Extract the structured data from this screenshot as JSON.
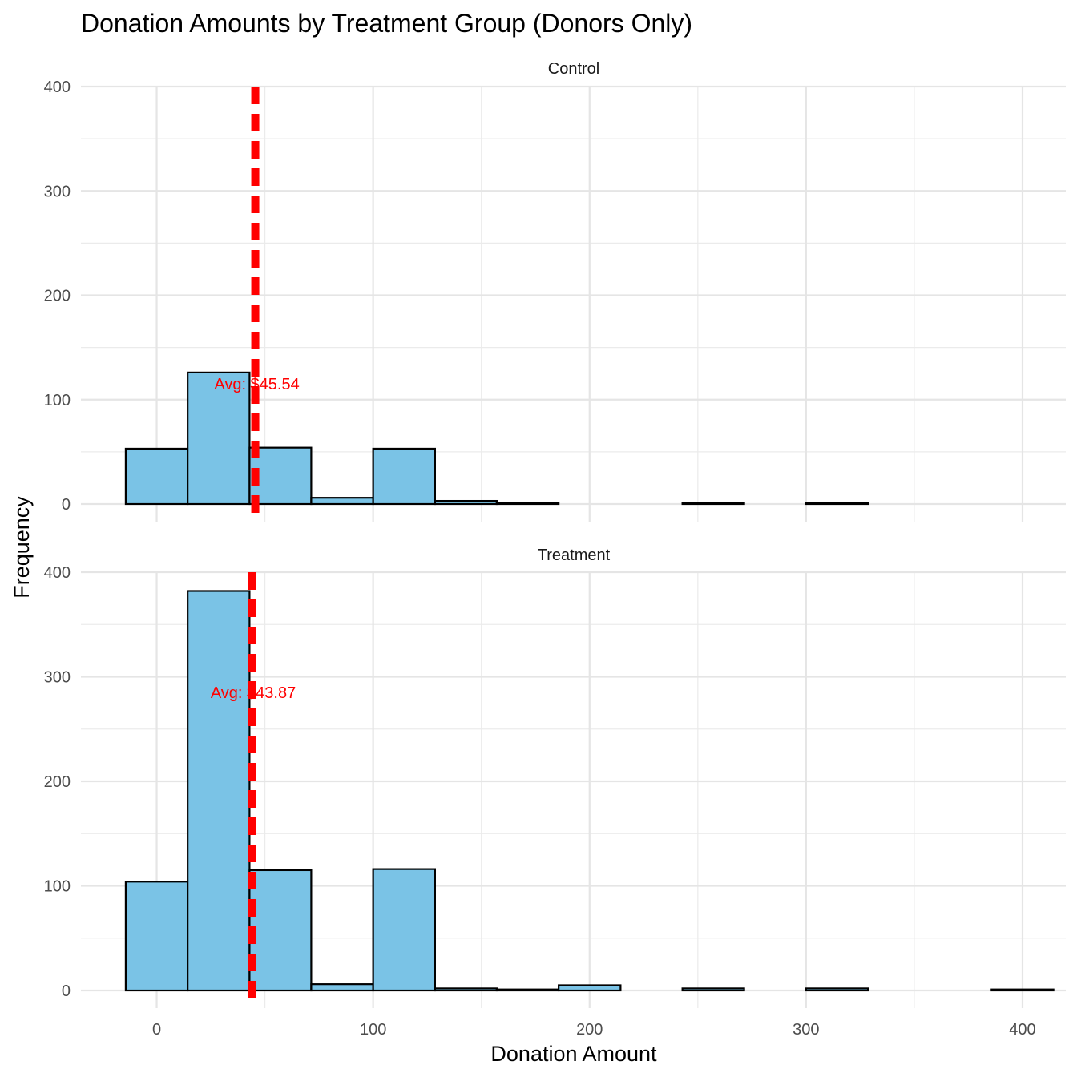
{
  "chart_data": {
    "type": "bar",
    "title": "Donation Amounts by Treatment Group (Donors Only)",
    "xlabel": "Donation Amount",
    "ylabel": "Frequency",
    "xlim": [
      -35,
      420
    ],
    "ylim": [
      0,
      400
    ],
    "x_ticks": [
      0,
      100,
      200,
      300,
      400
    ],
    "y_ticks": [
      0,
      100,
      200,
      300,
      400
    ],
    "bin_edges": [
      -14.3,
      14.3,
      42.9,
      71.4,
      100.0,
      128.6,
      157.1,
      185.7,
      214.3,
      242.9,
      271.4,
      300.0,
      328.6,
      357.1,
      385.7,
      414.3
    ],
    "grid": true,
    "bar_color": "#7ac3e6",
    "bar_outline": "#000000",
    "mean_line_color": "#ff0000",
    "panels": [
      {
        "name": "Control",
        "counts": [
          53,
          126,
          54,
          6,
          53,
          3,
          1,
          0,
          0,
          1,
          0,
          1,
          0,
          0,
          0
        ],
        "mean": 45.54,
        "mean_label": "Avg: $45.54",
        "label_y": 115
      },
      {
        "name": "Treatment",
        "counts": [
          104,
          382,
          115,
          6,
          116,
          2,
          1,
          5,
          0,
          2,
          0,
          2,
          0,
          0,
          1
        ],
        "mean": 43.87,
        "mean_label": "Avg: $43.87",
        "label_y": 285
      }
    ]
  }
}
